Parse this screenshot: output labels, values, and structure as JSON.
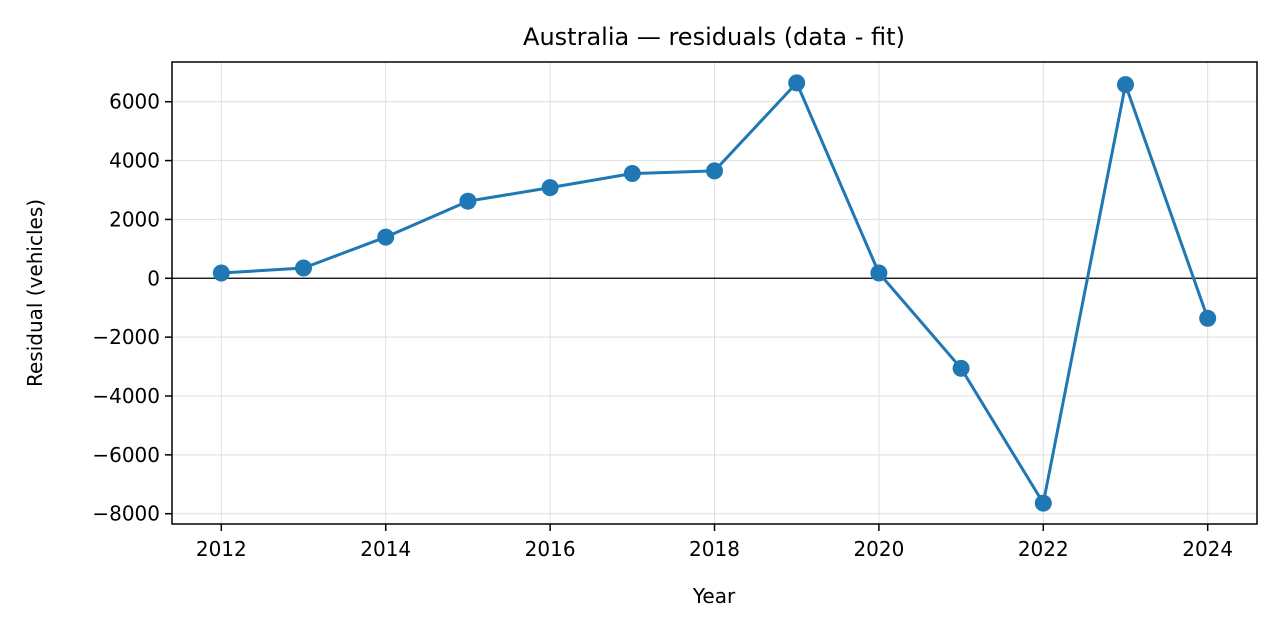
{
  "chart_data": {
    "type": "line",
    "title": "Australia — residuals (data - fit)",
    "xlabel": "Year",
    "ylabel": "Residual (vehicles)",
    "xlim": [
      2011.4,
      2024.6
    ],
    "ylim": [
      -8350,
      7350
    ],
    "xticks": [
      2012,
      2014,
      2016,
      2018,
      2020,
      2022,
      2024
    ],
    "xtick_labels": [
      "2012",
      "2014",
      "2016",
      "2018",
      "2020",
      "2022",
      "2024"
    ],
    "yticks": [
      -8000,
      -6000,
      -4000,
      -2000,
      0,
      2000,
      4000,
      6000
    ],
    "ytick_labels": [
      "−8000",
      "−6000",
      "−4000",
      "−2000",
      "0",
      "2000",
      "4000",
      "6000"
    ],
    "grid": true,
    "zero_line": true,
    "series": [
      {
        "color": "#1f77b4",
        "marker": "circle",
        "x": [
          2012,
          2013,
          2014,
          2015,
          2016,
          2017,
          2018,
          2019,
          2020,
          2021,
          2022,
          2023,
          2024
        ],
        "y": [
          180,
          350,
          1400,
          2620,
          3080,
          3560,
          3650,
          6640,
          180,
          -3060,
          -7640,
          6580,
          -1360
        ]
      }
    ]
  }
}
